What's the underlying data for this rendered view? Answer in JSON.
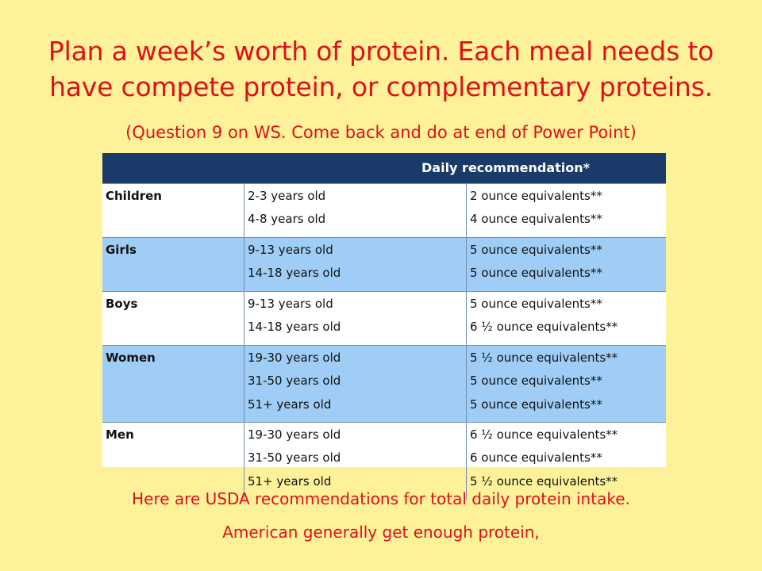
{
  "slide": {
    "title_lines": [
      "Plan a week’s worth of protein.  Each meal needs to",
      "have compete protein, or complementary proteins."
    ],
    "subtitle": "(Question 9 on WS.  Come back and do at end of Power Point)",
    "footer_lines": [
      "Here are USDA recommendations for total daily protein intake.",
      "American generally get enough protein,"
    ]
  },
  "table": {
    "header": "Daily recommendation*",
    "groups": [
      {
        "category": "Children",
        "shaded": false,
        "ages": [
          "2-3 years old",
          "4-8 years old"
        ],
        "amounts": [
          "2 ounce equivalents**",
          "4 ounce equivalents**"
        ]
      },
      {
        "category": "Girls",
        "shaded": true,
        "ages": [
          "9-13 years old",
          "14-18 years old"
        ],
        "amounts": [
          "5 ounce equivalents**",
          "5 ounce equivalents**"
        ]
      },
      {
        "category": "Boys",
        "shaded": false,
        "ages": [
          "9-13 years old",
          "14-18 years old"
        ],
        "amounts": [
          "5 ounce equivalents**",
          "6 ½ ounce equivalents**"
        ]
      },
      {
        "category": "Women",
        "shaded": true,
        "ages": [
          "19-30 years old",
          "31-50 years old",
          "51+ years old"
        ],
        "amounts": [
          "5 ½ ounce equivalents**",
          "5 ounce equivalents**",
          "5 ounce equivalents**"
        ]
      },
      {
        "category": "Men",
        "shaded": false,
        "ages": [
          "19-30 years old",
          "31-50 years old",
          "51+ years old"
        ],
        "amounts": [
          "6 ½ ounce equivalents**",
          "6 ounce equivalents**",
          "5 ½ ounce equivalents**"
        ]
      }
    ]
  },
  "colors": {
    "background": "#fdf29a",
    "text_red": "#e0101a",
    "header_navy": "#1a3a6a",
    "row_shade_blue": "#9fcdf5"
  }
}
